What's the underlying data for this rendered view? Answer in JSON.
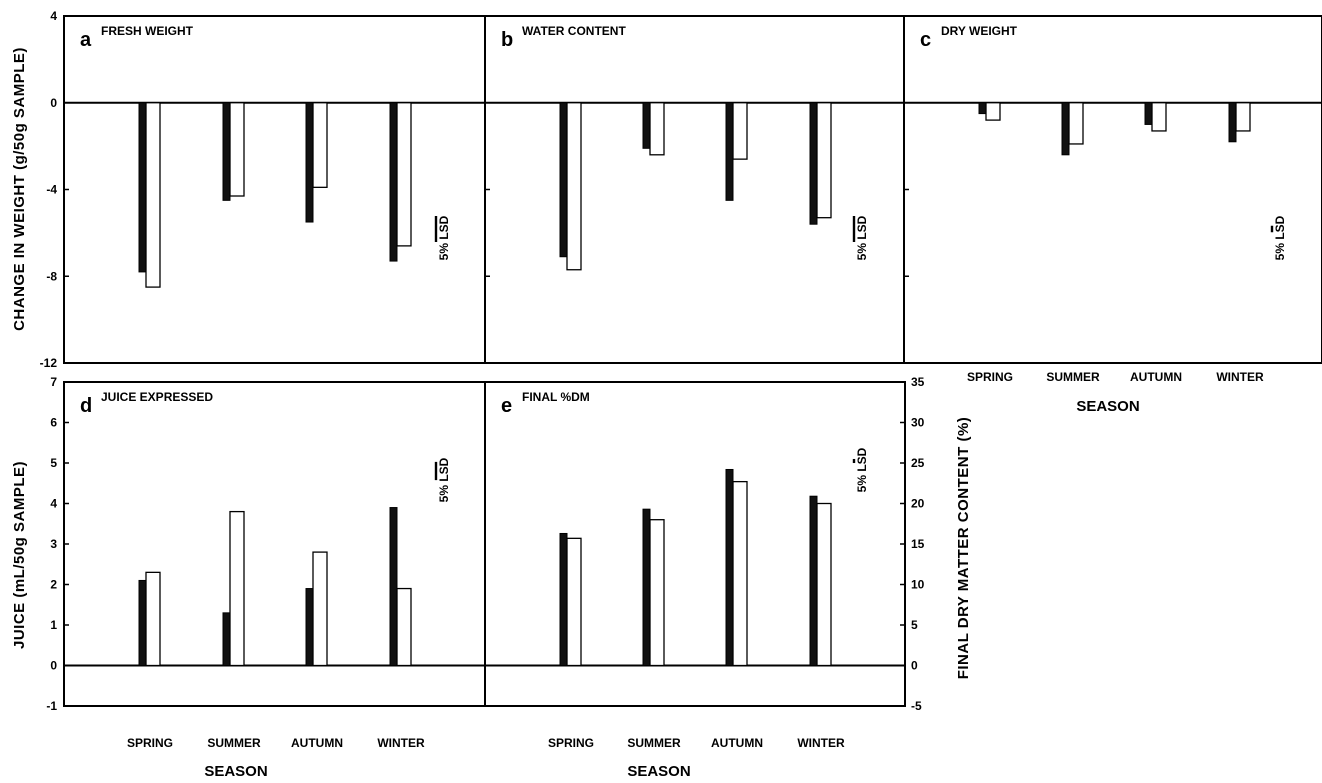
{
  "colors": {
    "series1": "#111111",
    "series2": "#ffffff",
    "axis": "#000000"
  },
  "chart_data": [
    {
      "type": "bar",
      "letter": "a",
      "title": "FRESH WEIGHT",
      "categories": [
        "SPRING",
        "SUMMER",
        "AUTUMN",
        "WINTER"
      ],
      "series": [
        {
          "values": [
            -7.8,
            -4.5,
            -5.5,
            -7.3
          ]
        },
        {
          "values": [
            -8.5,
            -4.3,
            -3.9,
            -6.6
          ]
        }
      ],
      "ylim": [
        -12,
        4
      ],
      "yticks": [
        "4",
        "0",
        "-4",
        "-8",
        "-12"
      ],
      "lsd_label": "5% LSD",
      "lsd_value": 1.2
    },
    {
      "type": "bar",
      "letter": "b",
      "title": "WATER CONTENT",
      "categories": [
        "SPRING",
        "SUMMER",
        "AUTUMN",
        "WINTER"
      ],
      "series": [
        {
          "values": [
            -7.1,
            -2.1,
            -4.5,
            -5.6
          ]
        },
        {
          "values": [
            -7.7,
            -2.4,
            -2.6,
            -5.3
          ]
        }
      ],
      "ylim": [
        -12,
        4
      ],
      "lsd_label": "5% LSD",
      "lsd_value": 1.2
    },
    {
      "type": "bar",
      "letter": "c",
      "title": "DRY WEIGHT",
      "categories": [
        "SPRING",
        "SUMMER",
        "AUTUMN",
        "WINTER"
      ],
      "series": [
        {
          "values": [
            -0.5,
            -2.4,
            -1.0,
            -1.8
          ]
        },
        {
          "values": [
            -0.8,
            -1.9,
            -1.3,
            -1.3
          ]
        }
      ],
      "ylim": [
        -12,
        4
      ],
      "xlabel": "SEASON",
      "lsd_label": "5% LSD",
      "lsd_value": 0.3
    },
    {
      "type": "bar",
      "letter": "d",
      "title": "JUICE EXPRESSED",
      "categories": [
        "SPRING",
        "SUMMER",
        "AUTUMN",
        "WINTER"
      ],
      "series": [
        {
          "values": [
            2.1,
            1.3,
            1.9,
            3.9
          ]
        },
        {
          "values": [
            2.3,
            3.8,
            2.8,
            1.9
          ]
        }
      ],
      "ylim": [
        -1,
        7
      ],
      "yticks": [
        "-1",
        "0",
        "1",
        "2",
        "3",
        "4",
        "5",
        "6",
        "7"
      ],
      "ylabel": "JUICE (mL/50g SAMPLE)",
      "xlabel": "SEASON",
      "lsd_label": "5% LSD",
      "lsd_value": 0.45
    },
    {
      "type": "bar",
      "letter": "e",
      "title": "FINAL %DM",
      "categories": [
        "SPRING",
        "SUMMER",
        "AUTUMN",
        "WINTER"
      ],
      "series": [
        {
          "values": [
            16.3,
            19.3,
            24.2,
            20.9
          ]
        },
        {
          "values": [
            15.7,
            18.0,
            22.7,
            20.0
          ]
        }
      ],
      "ylim": [
        -5,
        35
      ],
      "yticks": [
        "-5",
        "0",
        "5",
        "10",
        "15",
        "20",
        "25",
        "30",
        "35"
      ],
      "ylabel": "FINAL DRY MATTER CONTENT (%)",
      "xlabel": "SEASON",
      "lsd_label": "5% LSD",
      "lsd_value": 0.5
    }
  ],
  "shared_ylabel_top": "CHANGE IN WEIGHT (g/50g SAMPLE)"
}
